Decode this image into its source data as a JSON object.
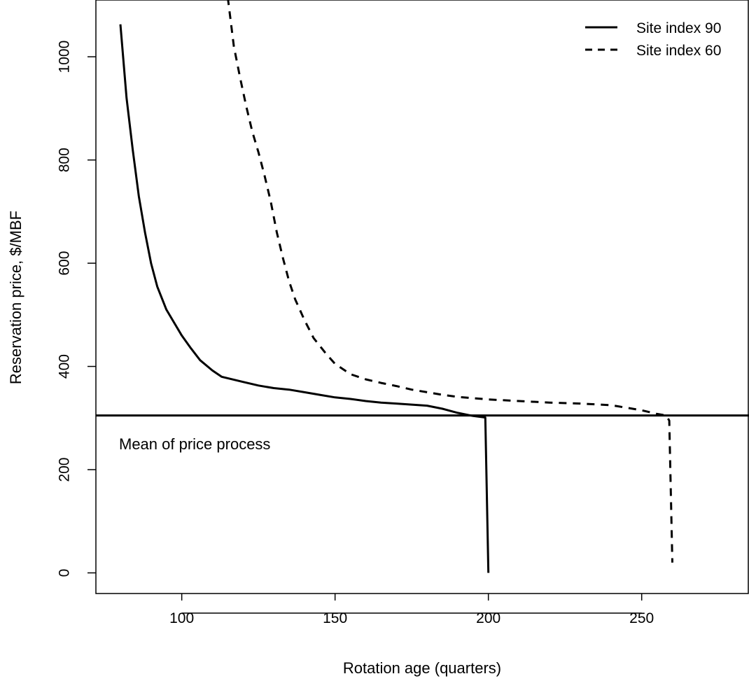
{
  "chart_data": {
    "type": "line",
    "title": "",
    "xlabel": "Rotation age (quarters)",
    "ylabel": "Reservation price, $/MBF",
    "xlim": [
      72,
      285
    ],
    "ylim": [
      -40,
      1110
    ],
    "x_ticks": [
      100,
      150,
      200,
      250
    ],
    "y_ticks": [
      0,
      200,
      400,
      600,
      800,
      1000
    ],
    "grid": false,
    "legend_position": "top-right",
    "series": [
      {
        "name": "Site index 90",
        "style": "solid",
        "points": [
          [
            80,
            1063
          ],
          [
            82,
            920
          ],
          [
            84,
            820
          ],
          [
            86,
            730
          ],
          [
            88,
            660
          ],
          [
            90,
            600
          ],
          [
            92,
            555
          ],
          [
            95,
            510
          ],
          [
            98,
            480
          ],
          [
            100,
            460
          ],
          [
            103,
            435
          ],
          [
            106,
            412
          ],
          [
            110,
            392
          ],
          [
            113,
            380
          ],
          [
            120,
            370
          ],
          [
            125,
            363
          ],
          [
            130,
            358
          ],
          [
            135,
            355
          ],
          [
            140,
            350
          ],
          [
            145,
            345
          ],
          [
            150,
            340
          ],
          [
            155,
            337
          ],
          [
            160,
            333
          ],
          [
            165,
            330
          ],
          [
            170,
            328
          ],
          [
            175,
            326
          ],
          [
            180,
            324
          ],
          [
            185,
            318
          ],
          [
            190,
            310
          ],
          [
            195,
            304
          ],
          [
            199,
            301
          ],
          [
            200,
            0
          ]
        ]
      },
      {
        "name": "Site index 60",
        "style": "dashed",
        "points": [
          [
            115,
            1115
          ],
          [
            117,
            1020
          ],
          [
            119,
            960
          ],
          [
            121,
            905
          ],
          [
            123,
            855
          ],
          [
            125,
            815
          ],
          [
            127,
            770
          ],
          [
            129,
            720
          ],
          [
            131,
            660
          ],
          [
            133,
            610
          ],
          [
            135,
            565
          ],
          [
            137,
            530
          ],
          [
            140,
            490
          ],
          [
            143,
            455
          ],
          [
            147,
            425
          ],
          [
            150,
            405
          ],
          [
            155,
            385
          ],
          [
            160,
            375
          ],
          [
            165,
            368
          ],
          [
            170,
            362
          ],
          [
            175,
            355
          ],
          [
            180,
            350
          ],
          [
            185,
            345
          ],
          [
            190,
            341
          ],
          [
            200,
            336
          ],
          [
            210,
            333
          ],
          [
            220,
            330
          ],
          [
            230,
            328
          ],
          [
            240,
            325
          ],
          [
            245,
            320
          ],
          [
            250,
            315
          ],
          [
            255,
            308
          ],
          [
            258,
            305
          ],
          [
            259,
            295
          ],
          [
            260,
            20
          ]
        ]
      }
    ],
    "reference_line": {
      "y": 305,
      "label": "Mean of price process"
    }
  }
}
